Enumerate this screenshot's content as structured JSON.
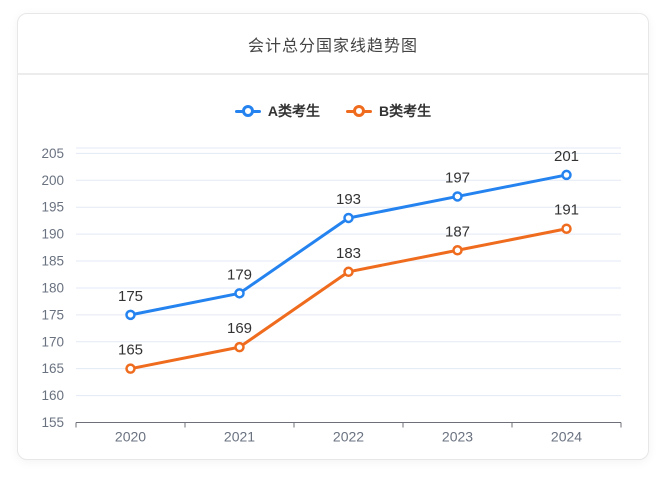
{
  "card": {
    "title": "会计总分国家线趋势图"
  },
  "chart_data": {
    "type": "line",
    "title": "会计总分国家线趋势图",
    "categories": [
      "2020",
      "2021",
      "2022",
      "2023",
      "2024"
    ],
    "series": [
      {
        "name": "A类考生",
        "color": "#2583f0",
        "values": [
          175,
          179,
          193,
          197,
          201
        ]
      },
      {
        "name": "B类考生",
        "color": "#ef6c1f",
        "values": [
          165,
          169,
          183,
          187,
          191
        ]
      }
    ],
    "xlabel": "",
    "ylabel": "",
    "ylim": [
      155,
      205
    ],
    "y_ticks": [
      155,
      160,
      165,
      170,
      175,
      180,
      185,
      190,
      195,
      200,
      205
    ],
    "grid": true,
    "legend_position": "top",
    "data_labels": true,
    "colors": {
      "axis_line": "#6e7079",
      "axis_label": "#6a7280",
      "grid_line": "#e3e9f4",
      "data_label": "#333333",
      "legend_text": "#333333",
      "title_text": "#444444",
      "card_border": "#e7e7e7",
      "divider": "#ececec"
    }
  }
}
